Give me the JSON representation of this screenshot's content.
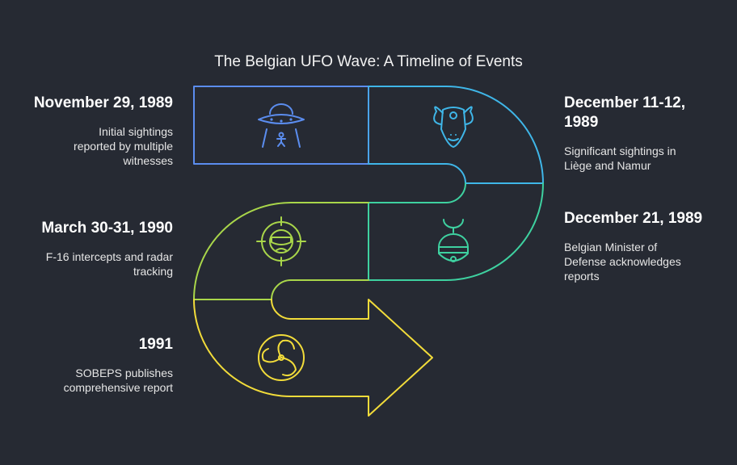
{
  "title": "The Belgian UFO Wave: A Timeline of Events",
  "colors": {
    "background": "#262a33",
    "stage1": "#5b8def",
    "stage2": "#3fb6e8",
    "stage3": "#3ed1a0",
    "stage4": "#a9d64a",
    "stage5": "#f2dc3a"
  },
  "events": [
    {
      "date": "November 29, 1989",
      "description": "Initial sightings reported by multiple witnesses",
      "icon": "ufo-icon"
    },
    {
      "date": "December 11-12, 1989",
      "description": "Significant sightings in Liège and Namur",
      "icon": "ram-head-icon"
    },
    {
      "date": "December 21, 1989",
      "description": "Belgian Minister of Defense acknowledges reports",
      "icon": "bell-icon"
    },
    {
      "date": "March 30-31, 1990",
      "description": "F-16 intercepts and radar tracking",
      "icon": "pilot-target-icon"
    },
    {
      "date": "1991",
      "description": "SOBEPS publishes comprehensive report",
      "icon": "swirl-icon"
    }
  ]
}
